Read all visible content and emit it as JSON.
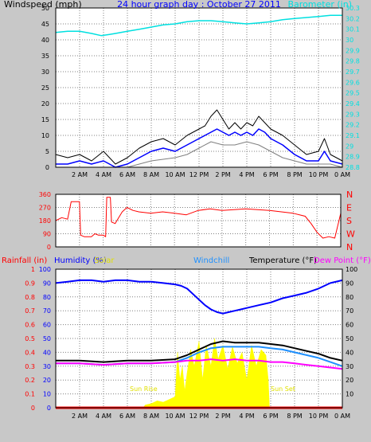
{
  "title": "24 hour graph day : October 27 2011",
  "colors": {
    "background": "#c8c8c8",
    "plot": "#ffffff",
    "grid": "#808080",
    "windspeed": "#000000",
    "gust": "#0000ff",
    "avg_wind": "#808080",
    "barometer": "#00e0e0",
    "direction": "#ff0000",
    "temperature": "#000000",
    "dewpoint": "#ff00ff",
    "humidity": "#0000ff",
    "windchill": "#1e90ff",
    "solar": "#ffff00",
    "rainfall": "#ff0000",
    "sun_label": "#e0e000"
  },
  "chart_data": [
    {
      "type": "line",
      "name": "wind-barometer",
      "title": "24 hour graph day : October 27 2011",
      "ylabel_left": "Windspeed (mph)",
      "ylabel_right": "Barometer (in)",
      "x_ticks": [
        "2 AM",
        "4 AM",
        "6 AM",
        "8 AM",
        "10 AM",
        "12 PM",
        "2 PM",
        "4 PM",
        "6 PM",
        "8 PM",
        "10 PM",
        "0 AM"
      ],
      "x_range_hours": [
        0,
        24
      ],
      "y_left": {
        "range": [
          0,
          50
        ],
        "ticks": [
          "0",
          "5",
          "10",
          "15",
          "20",
          "25",
          "30",
          "35",
          "40",
          "45",
          "50"
        ]
      },
      "y_right": {
        "range": [
          28.8,
          30.3
        ],
        "ticks": [
          "28.8",
          "28.9",
          "29",
          "29.1",
          "29.2",
          "29.3",
          "29.4",
          "29.5",
          "29.6",
          "29.7",
          "29.8",
          "29.9",
          "30",
          "30.1",
          "30.2",
          "30.3"
        ]
      },
      "grid": true,
      "series": [
        {
          "key": "barometer",
          "axis": "right",
          "x": [
            0,
            1,
            2,
            3,
            3.8,
            4.5,
            5,
            6,
            7,
            8,
            9,
            10,
            11,
            12,
            13,
            14,
            15,
            16,
            17,
            18,
            19,
            20,
            21,
            22,
            23,
            24
          ],
          "y": [
            30.07,
            30.08,
            30.08,
            30.06,
            30.04,
            30.05,
            30.06,
            30.08,
            30.1,
            30.12,
            30.14,
            30.15,
            30.17,
            30.18,
            30.18,
            30.17,
            30.16,
            30.15,
            30.16,
            30.17,
            30.19,
            30.2,
            30.21,
            30.22,
            30.23,
            30.23
          ]
        },
        {
          "key": "windspeed",
          "axis": "left",
          "x": [
            0,
            1,
            2,
            3,
            4,
            5,
            6,
            7,
            8,
            9,
            10,
            11,
            12,
            12.5,
            13,
            13.5,
            14,
            14.5,
            15,
            15.5,
            16,
            16.5,
            17,
            17.5,
            18,
            19,
            20,
            21,
            22,
            22.5,
            23,
            24
          ],
          "y": [
            4,
            3,
            4,
            2,
            5,
            1,
            3,
            6,
            8,
            9,
            7,
            10,
            12,
            13,
            16,
            18,
            15,
            12,
            14,
            12,
            14,
            13,
            16,
            14,
            12,
            10,
            7,
            4,
            5,
            9,
            4,
            2
          ]
        },
        {
          "key": "gust",
          "axis": "left",
          "x": [
            0,
            1,
            2,
            3,
            4,
            5,
            6,
            7,
            8,
            9,
            10,
            11,
            12,
            12.5,
            13,
            13.5,
            14,
            14.5,
            15,
            15.5,
            16,
            16.5,
            17,
            17.5,
            18,
            19,
            20,
            21,
            22,
            22.5,
            23,
            24
          ],
          "y": [
            1,
            1,
            2,
            1,
            2,
            0,
            1,
            3,
            5,
            6,
            5,
            7,
            9,
            10,
            11,
            12,
            11,
            10,
            11,
            10,
            11,
            10,
            12,
            11,
            9,
            7,
            4,
            2,
            2,
            5,
            2,
            1
          ]
        },
        {
          "key": "avg_wind",
          "axis": "left",
          "x": [
            0,
            2,
            4,
            6,
            8,
            10,
            11,
            12,
            13,
            14,
            15,
            16,
            17,
            18,
            19,
            20,
            21,
            22,
            23,
            24
          ],
          "y": [
            0,
            0,
            0,
            0,
            2,
            3,
            4,
            6,
            8,
            7,
            7,
            8,
            7,
            5,
            3,
            2,
            1,
            1,
            1,
            0
          ]
        }
      ]
    },
    {
      "type": "line",
      "name": "wind-direction",
      "y_range": [
        0,
        360
      ],
      "y_ticks": [
        "0",
        "90",
        "180",
        "270",
        "360"
      ],
      "y_right_labels": [
        "N",
        "W",
        "S",
        "E",
        "N"
      ],
      "x_ticks": [
        "2 AM",
        "4 AM",
        "6 AM",
        "8 AM",
        "10 AM",
        "12 PM",
        "2 PM",
        "4 PM",
        "6 PM",
        "8 PM",
        "10 PM",
        "0 AM"
      ],
      "grid": true,
      "series": [
        {
          "key": "direction",
          "x": [
            0,
            0.5,
            1,
            1.3,
            2,
            2.1,
            2.4,
            3,
            3.3,
            3.6,
            4,
            4.2,
            4.3,
            4.6,
            4.7,
            5,
            5.3,
            5.6,
            6,
            6.5,
            7,
            8,
            9,
            10,
            11,
            12,
            13,
            14,
            15,
            16,
            17,
            18,
            19,
            20,
            21,
            21.5,
            22,
            22.5,
            23,
            23.5,
            24
          ],
          "y": [
            180,
            200,
            190,
            310,
            310,
            80,
            70,
            70,
            90,
            80,
            80,
            70,
            340,
            340,
            170,
            160,
            200,
            240,
            270,
            250,
            240,
            230,
            240,
            230,
            220,
            250,
            260,
            250,
            255,
            260,
            255,
            250,
            240,
            230,
            210,
            160,
            100,
            60,
            70,
            60,
            230
          ]
        }
      ]
    },
    {
      "type": "line",
      "name": "temperature-humidity",
      "legend": [
        "Rainfall (in)",
        "Humidity (%)",
        "Solar",
        "Windchill",
        "Temperature (°F)",
        "Dew Point (°F)"
      ],
      "annotations": [
        "Sun Rise",
        "Sun Set"
      ],
      "x_ticks": [
        "2 AM",
        "4 AM",
        "6 AM",
        "8 AM",
        "10 AM",
        "12 PM",
        "2 PM",
        "4 PM",
        "6 PM",
        "8 PM",
        "10 PM",
        "0 AM"
      ],
      "y_rain": {
        "range": [
          0,
          1
        ],
        "ticks": [
          "0",
          "0.1",
          "0.2",
          "0.3",
          "0.4",
          "0.5",
          "0.6",
          "0.7",
          "0.8",
          "0.9",
          "1"
        ]
      },
      "y_humidity": {
        "range": [
          0,
          100
        ],
        "ticks": [
          "0",
          "10",
          "20",
          "30",
          "40",
          "50",
          "60",
          "70",
          "80",
          "90",
          "100"
        ]
      },
      "y_temp": {
        "range": [
          0,
          100
        ],
        "ticks": [
          "10",
          "20",
          "30",
          "40",
          "50",
          "60",
          "70",
          "80",
          "90",
          "100"
        ]
      },
      "grid": true,
      "series": [
        {
          "key": "solar",
          "axis": "temp",
          "x": [
            7.3,
            7.5,
            8,
            8.5,
            9,
            9.5,
            10,
            10.2,
            10.4,
            10.6,
            10.8,
            11,
            11.3,
            11.6,
            12,
            12.3,
            12.6,
            13,
            13.3,
            13.6,
            14,
            14.4,
            14.8,
            15.2,
            15.6,
            16,
            16.4,
            16.8,
            17.2,
            17.6,
            17.8,
            17.9
          ],
          "y": [
            0,
            2,
            3,
            5,
            4,
            6,
            8,
            40,
            20,
            30,
            12,
            25,
            42,
            30,
            48,
            20,
            45,
            30,
            50,
            35,
            45,
            28,
            44,
            32,
            40,
            20,
            45,
            30,
            42,
            38,
            20,
            0
          ]
        },
        {
          "key": "humidity",
          "axis": "humidity",
          "x": [
            0,
            1,
            2,
            3,
            4,
            5,
            6,
            7,
            8,
            9,
            10,
            10.5,
            11,
            11.5,
            12,
            12.5,
            13,
            13.5,
            14,
            14.5,
            15,
            15.5,
            16,
            17,
            18,
            19,
            20,
            21,
            22,
            23,
            24
          ],
          "y": [
            90,
            91,
            92,
            92,
            91,
            92,
            92,
            91,
            91,
            90,
            89,
            88,
            86,
            82,
            78,
            74,
            71,
            69,
            68,
            69,
            70,
            71,
            72,
            74,
            76,
            79,
            81,
            83,
            86,
            90,
            92
          ]
        },
        {
          "key": "temperature",
          "axis": "temp",
          "x": [
            0,
            2,
            4,
            6,
            8,
            10,
            11,
            12,
            13,
            14,
            15,
            16,
            17,
            18,
            19,
            20,
            21,
            22,
            23,
            24
          ],
          "y": [
            34,
            34,
            33,
            34,
            34,
            35,
            38,
            42,
            46,
            48,
            47,
            47,
            47,
            46,
            45,
            43,
            41,
            39,
            36,
            34
          ]
        },
        {
          "key": "windchill",
          "axis": "temp",
          "x": [
            0,
            2,
            4,
            6,
            8,
            10,
            11,
            12,
            13,
            14,
            15,
            16,
            17,
            18,
            19,
            20,
            21,
            22,
            23,
            24
          ],
          "y": [
            32,
            32,
            31,
            32,
            32,
            33,
            36,
            40,
            43,
            44,
            44,
            44,
            44,
            43,
            42,
            40,
            38,
            36,
            33,
            30
          ]
        },
        {
          "key": "dewpoint",
          "axis": "temp",
          "x": [
            0,
            2,
            4,
            6,
            8,
            10,
            11,
            12,
            13,
            14,
            15,
            16,
            17,
            18,
            19,
            20,
            21,
            22,
            23,
            24
          ],
          "y": [
            32,
            32,
            31,
            32,
            32,
            33,
            34,
            34,
            35,
            34,
            35,
            34,
            34,
            33,
            33,
            32,
            31,
            30,
            29,
            28
          ]
        },
        {
          "key": "rainfall",
          "axis": "rain",
          "x": [
            0,
            24
          ],
          "y": [
            0,
            0
          ]
        }
      ]
    }
  ]
}
